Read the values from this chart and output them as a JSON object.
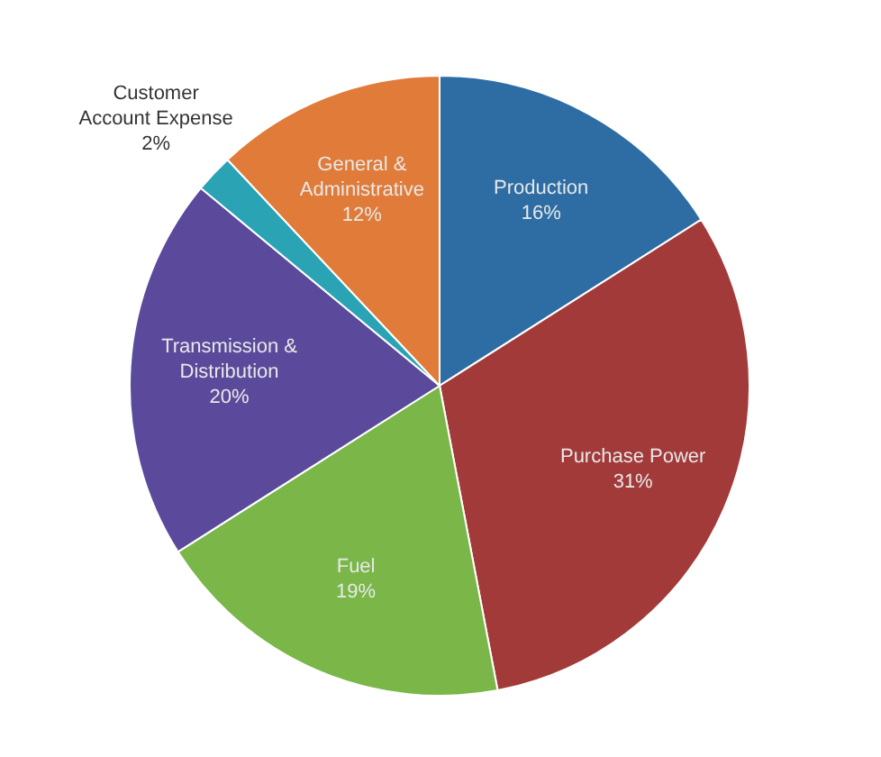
{
  "chart_data": {
    "type": "pie",
    "categories": [
      "Production",
      "Purchase Power",
      "Fuel",
      "Transmission & Distribution",
      "Customer Account Expense",
      "General & Administrative"
    ],
    "values": [
      16,
      31,
      19,
      20,
      2,
      12
    ],
    "colors": [
      "#2e6da4",
      "#a33a3a",
      "#7ab648",
      "#5b4a9b",
      "#2aa3b5",
      "#e07b39"
    ],
    "value_labels": [
      "16%",
      "31%",
      "19%",
      "20%",
      "2%",
      "12%"
    ]
  }
}
